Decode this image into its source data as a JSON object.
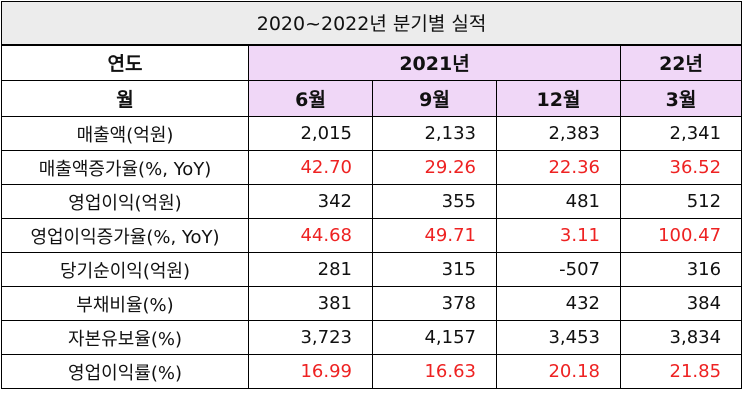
{
  "table": {
    "title": "2020~2022년 분기별 실적",
    "header_year_label": "연도",
    "header_year_2021": "2021년",
    "header_year_2022": "22년",
    "header_month_label": "월",
    "months": [
      "6월",
      "9월",
      "12월",
      "3월"
    ],
    "accent_color": "#f0d7f7",
    "highlight_color": "#ee2222",
    "rows": [
      {
        "label": "매출액(억원)",
        "values": [
          "2,015",
          "2,133",
          "2,383",
          "2,341"
        ],
        "highlight": false
      },
      {
        "label": "매출액증가율(%, YoY)",
        "values": [
          "42.70",
          "29.26",
          "22.36",
          "36.52"
        ],
        "highlight": true
      },
      {
        "label": "영업이익(억원)",
        "values": [
          "342",
          "355",
          "481",
          "512"
        ],
        "highlight": false
      },
      {
        "label": "영업이익증가율(%, YoY)",
        "values": [
          "44.68",
          "49.71",
          "3.11",
          "100.47"
        ],
        "highlight": true
      },
      {
        "label": "당기순이익(억원)",
        "values": [
          "281",
          "315",
          "-507",
          "316"
        ],
        "highlight": false
      },
      {
        "label": "부채비율(%)",
        "values": [
          "381",
          "378",
          "432",
          "384"
        ],
        "highlight": false
      },
      {
        "label": "자본유보율(%)",
        "values": [
          "3,723",
          "4,157",
          "3,453",
          "3,834"
        ],
        "highlight": false
      },
      {
        "label": "영업이익률(%)",
        "values": [
          "16.99",
          "16.63",
          "20.18",
          "21.85"
        ],
        "highlight": true
      }
    ]
  }
}
